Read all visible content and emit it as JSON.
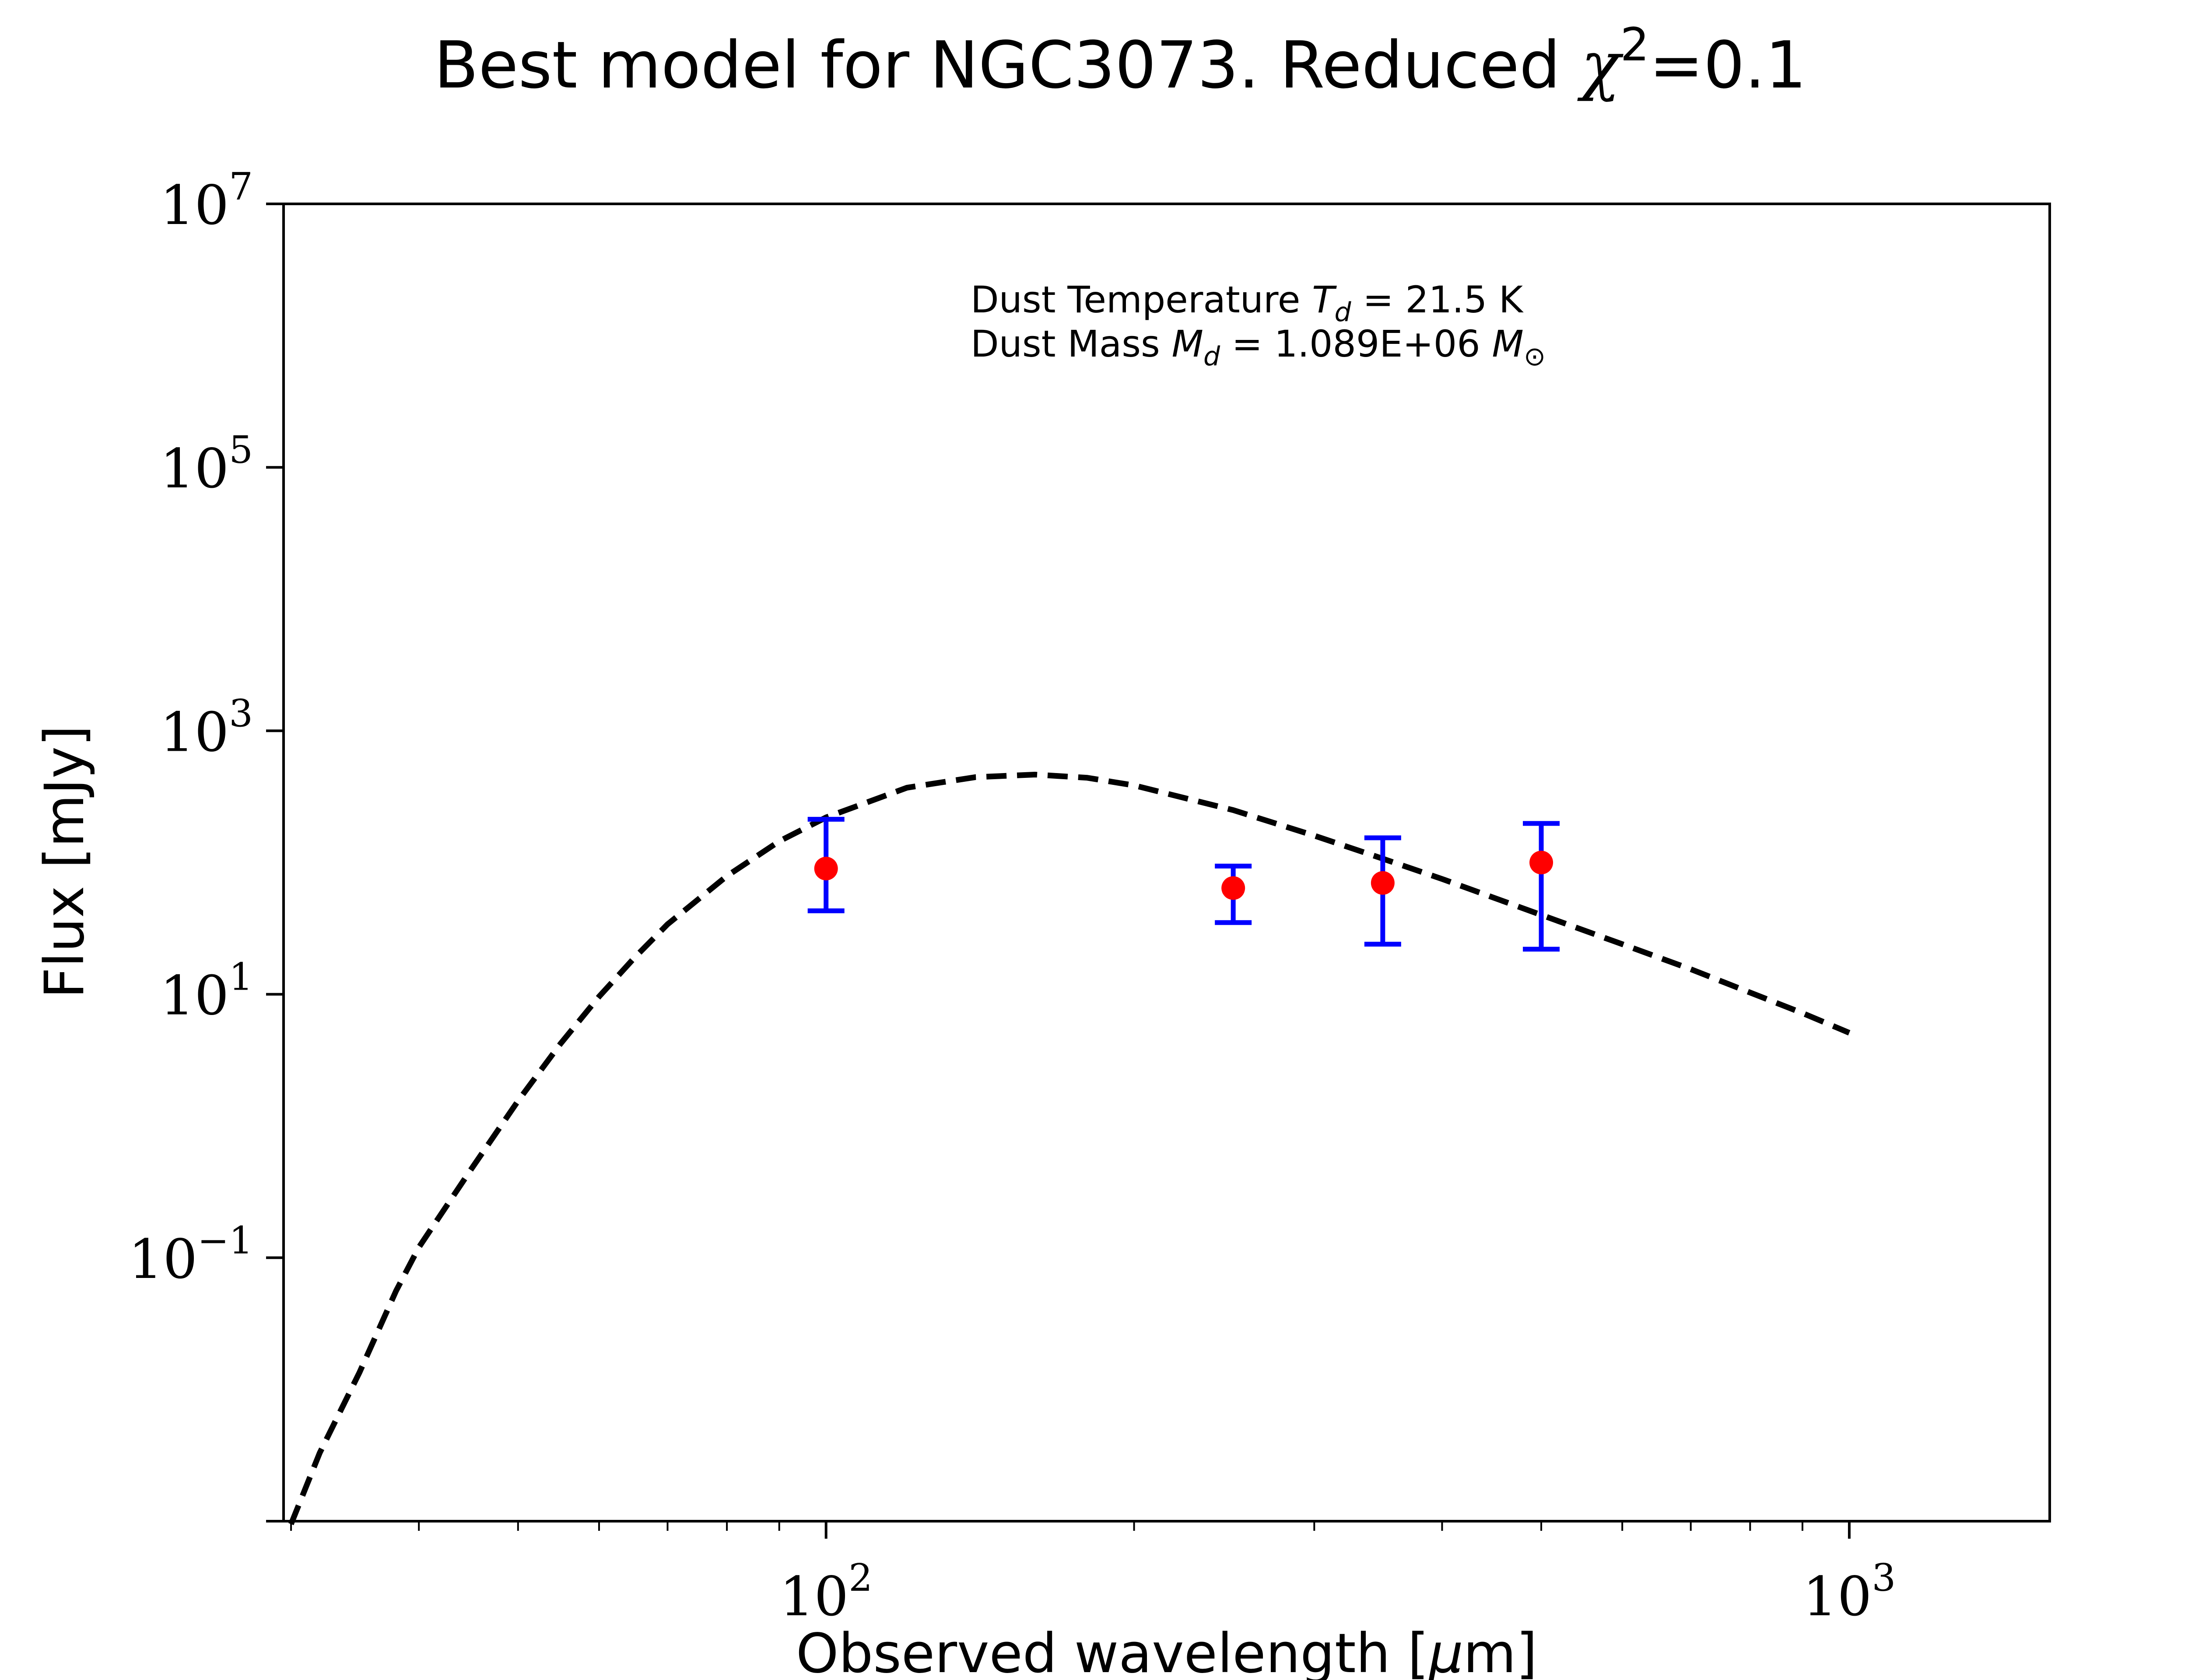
{
  "chart_data": {
    "type": "scatter",
    "title": {
      "prefix": "Best model for NGC3073. Reduced ",
      "chi_symbol": "χ",
      "chi_exponent": "2",
      "suffix": "=0.1"
    },
    "xlabel": {
      "prefix": "Observed wavelength [",
      "unit_symbol": "μ",
      "unit_rest": "m]"
    },
    "ylabel": "Flux [mJy]",
    "x_scale": "log",
    "y_scale": "log",
    "xlim": [
      29.5,
      1570
    ],
    "ylim": [
      0.001,
      10000000
    ],
    "x_ticks": [
      {
        "value": 100,
        "base": "10",
        "exp": "2"
      },
      {
        "value": 1000,
        "base": "10",
        "exp": "3"
      }
    ],
    "y_ticks": [
      {
        "value": 0.1,
        "base": "10",
        "exp": "−1"
      },
      {
        "value": 10,
        "base": "10",
        "exp": "1"
      },
      {
        "value": 1000,
        "base": "10",
        "exp": "3"
      },
      {
        "value": 100000,
        "base": "10",
        "exp": "5"
      },
      {
        "value": 10000000,
        "base": "10",
        "exp": "7"
      }
    ],
    "annotation": {
      "temperature": {
        "prefix": "Dust Temperature ",
        "symbol": "T",
        "subscript": "d",
        "suffix": " = 21.5 K"
      },
      "mass": {
        "prefix": "Dust Mass ",
        "symbol": "M",
        "subscript": "d",
        "middle": " = 1.089E+06 ",
        "unit_symbol": "M",
        "unit_subscript": "⊙"
      }
    },
    "observations": {
      "points": [
        {
          "x": 100,
          "y": 90,
          "yerr_low": 47,
          "yerr_high": 123
        },
        {
          "x": 250,
          "y": 64,
          "yerr_low": 29,
          "yerr_high": 30
        },
        {
          "x": 350,
          "y": 70,
          "yerr_low": 46,
          "yerr_high": 84
        },
        {
          "x": 500,
          "y": 100,
          "yerr_low": 78,
          "yerr_high": 98
        }
      ],
      "marker_color": "#ff0000",
      "errorbar_color": "#0000ff"
    },
    "model": {
      "style": "dashed",
      "color": "#000000",
      "x": [
        30,
        32,
        35,
        38,
        40,
        45,
        50,
        55,
        60,
        65,
        70,
        80,
        90,
        100,
        120,
        140,
        160,
        180,
        200,
        250,
        300,
        350,
        400,
        500,
        600,
        700,
        800,
        900,
        1000
      ],
      "y": [
        0.00095,
        0.0033,
        0.0135,
        0.056,
        0.12,
        0.47,
        1.55,
        4.2,
        9.6,
        19,
        34,
        79,
        145,
        220,
        370,
        445,
        465,
        440,
        385,
        250,
        160,
        107,
        75,
        40,
        24,
        15.5,
        10.3,
        7.2,
        5.1
      ]
    },
    "grid": false
  }
}
